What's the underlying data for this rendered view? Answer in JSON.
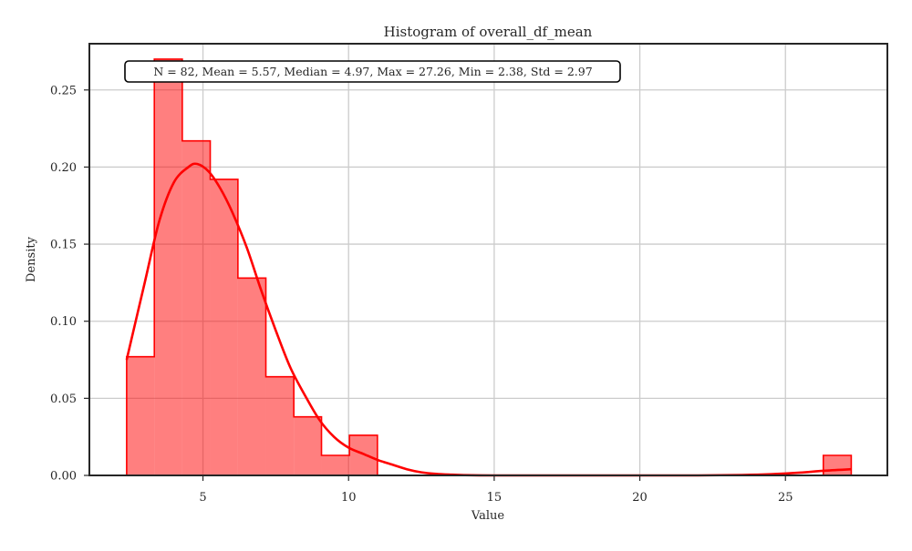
{
  "chart_data": {
    "type": "bar",
    "title": "Histogram of overall_df_mean",
    "xlabel": "Value",
    "ylabel": "Density",
    "xlim": [
      1.1,
      28.5
    ],
    "ylim": [
      0,
      0.28
    ],
    "x_ticks": [
      5,
      10,
      15,
      20,
      25
    ],
    "y_ticks": [
      0.0,
      0.05,
      0.1,
      0.15,
      0.2,
      0.25
    ],
    "x_tick_labels": [
      "5",
      "10",
      "15",
      "20",
      "25"
    ],
    "y_tick_labels": [
      "0.00",
      "0.05",
      "0.10",
      "0.15",
      "0.20",
      "0.25"
    ],
    "grid": true,
    "bin_edges": [
      2.38,
      3.33,
      4.29,
      5.25,
      6.2,
      7.16,
      8.12,
      9.07,
      10.03,
      10.99,
      11.94,
      12.9,
      13.86,
      14.81,
      15.77,
      16.73,
      17.68,
      18.64,
      19.6,
      20.55,
      21.51,
      22.47,
      23.43,
      24.38,
      25.34,
      26.3,
      27.26
    ],
    "densities": [
      0.077,
      0.27,
      0.217,
      0.192,
      0.128,
      0.064,
      0.038,
      0.013,
      0.026,
      0,
      0,
      0,
      0,
      0,
      0,
      0,
      0,
      0,
      0,
      0,
      0,
      0,
      0,
      0,
      0,
      0.013
    ],
    "kde": {
      "x": [
        2.38,
        3.0,
        3.5,
        4.0,
        4.5,
        4.8,
        5.2,
        5.6,
        6.0,
        6.5,
        7.0,
        7.5,
        8.0,
        8.5,
        9.0,
        9.5,
        10.0,
        10.5,
        11.0,
        11.5,
        12.0,
        12.5,
        13.0,
        13.5,
        14.0,
        15.0,
        17.0,
        20.0,
        22.0,
        23.5,
        24.5,
        25.5,
        26.3,
        27.26
      ],
      "y": [
        0.075,
        0.125,
        0.165,
        0.19,
        0.2,
        0.202,
        0.197,
        0.186,
        0.171,
        0.148,
        0.12,
        0.094,
        0.07,
        0.052,
        0.036,
        0.025,
        0.018,
        0.014,
        0.01,
        0.007,
        0.004,
        0.002,
        0.001,
        0.0005,
        0.0002,
        0.0,
        0.0,
        0.0,
        0.0,
        0.0003,
        0.0008,
        0.0018,
        0.003,
        0.004
      ]
    },
    "annotation": "N = 82, Mean = 5.57, Median = 4.97, Max = 27.26, Min = 2.38, Std = 2.97",
    "colors": {
      "fill": "#ff7f7f",
      "edge": "#ff0000",
      "kde": "#ff0000",
      "grid": "#cccccc",
      "spine": "#262626"
    }
  }
}
